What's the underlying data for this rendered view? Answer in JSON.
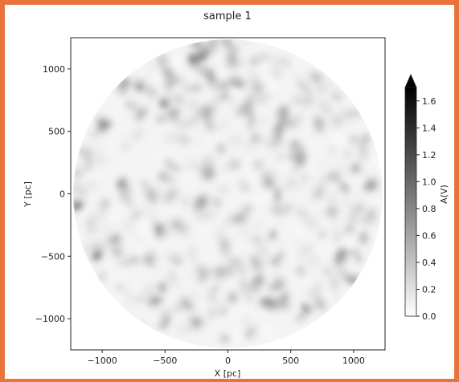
{
  "chart_data": {
    "type": "heatmap",
    "title": "sample  1",
    "xlabel": "X [pc]",
    "ylabel": "Y [pc]",
    "xlim": [
      -1250,
      1250
    ],
    "ylim": [
      -1250,
      1250
    ],
    "xticks": [
      -1000,
      -500,
      0,
      500,
      1000
    ],
    "yticks": [
      -1000,
      -500,
      0,
      500,
      1000
    ],
    "xtick_labels": [
      "−1000",
      "−500",
      "0",
      "500",
      "1000"
    ],
    "ytick_labels": [
      "−1000",
      "−500",
      "0",
      "500",
      "1000"
    ],
    "disk_radius": 1230,
    "colormap": "Greys",
    "colorbar": {
      "label": "A(V)",
      "min": 0.0,
      "max": 1.7,
      "extend": "max",
      "ticks": [
        0.0,
        0.2,
        0.4,
        0.6,
        0.8,
        1.0,
        1.2,
        1.4,
        1.6
      ],
      "tick_labels": [
        "0.0",
        "0.2",
        "0.4",
        "0.6",
        "0.8",
        "1.0",
        "1.2",
        "1.4",
        "1.6"
      ]
    },
    "grid": false,
    "colors": {
      "low": "#ffffff",
      "high": "#000000",
      "frame": "#e8743b"
    }
  }
}
